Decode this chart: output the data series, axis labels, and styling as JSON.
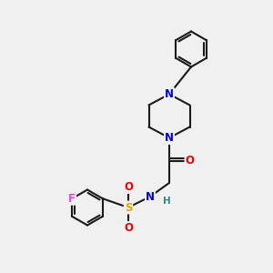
{
  "background_color": "#f0f0f0",
  "bond_color": "#1a1a1a",
  "bond_width": 1.5,
  "atom_colors": {
    "N": "#0000ee",
    "O": "#ee0000",
    "S": "#ddaa00",
    "F": "#ee44ee",
    "H": "#338888",
    "C": "#1a1a1a"
  },
  "font_size": 8.5,
  "fig_width": 3.0,
  "fig_height": 3.0,
  "dpi": 100,
  "xlim": [
    0,
    10
  ],
  "ylim": [
    0,
    10
  ]
}
